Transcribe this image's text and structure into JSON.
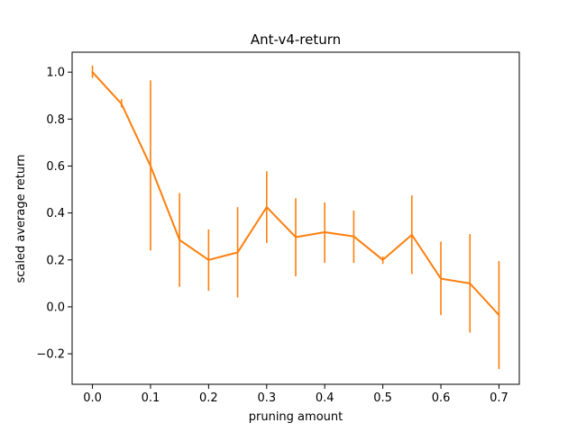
{
  "chart_data": {
    "type": "line",
    "title": "Ant-v4-return",
    "xlabel": "pruning amount",
    "ylabel": "scaled average return",
    "xlim": [
      -0.035,
      0.735
    ],
    "ylim": [
      -0.33,
      1.085
    ],
    "xticks": [
      0.0,
      0.1,
      0.2,
      0.3,
      0.4,
      0.5,
      0.6,
      0.7
    ],
    "xtick_labels": [
      "0.0",
      "0.1",
      "0.2",
      "0.3",
      "0.4",
      "0.5",
      "0.6",
      "0.7"
    ],
    "yticks": [
      -0.2,
      0.0,
      0.2,
      0.4,
      0.6,
      0.8,
      1.0
    ],
    "ytick_labels": [
      "−0.2",
      "0.0",
      "0.2",
      "0.4",
      "0.6",
      "0.8",
      "1.0"
    ],
    "grid": false,
    "color": "#ff7f0e",
    "series": [
      {
        "name": "Ant-v4-return",
        "x": [
          0.0,
          0.05,
          0.1,
          0.15,
          0.2,
          0.25,
          0.3,
          0.35,
          0.4,
          0.45,
          0.5,
          0.55,
          0.6,
          0.65,
          0.7
        ],
        "y": [
          1.0,
          0.865,
          0.6,
          0.285,
          0.2,
          0.232,
          0.425,
          0.297,
          0.318,
          0.3,
          0.2,
          0.307,
          0.12,
          0.1,
          -0.035
        ],
        "err_low": [
          0.975,
          0.85,
          0.24,
          0.085,
          0.068,
          0.04,
          0.272,
          0.13,
          0.187,
          0.187,
          0.183,
          0.14,
          -0.035,
          -0.11,
          -0.265
        ],
        "err_high": [
          1.028,
          0.885,
          0.965,
          0.485,
          0.33,
          0.425,
          0.578,
          0.463,
          0.445,
          0.41,
          0.215,
          0.475,
          0.278,
          0.31,
          0.195
        ]
      }
    ]
  }
}
